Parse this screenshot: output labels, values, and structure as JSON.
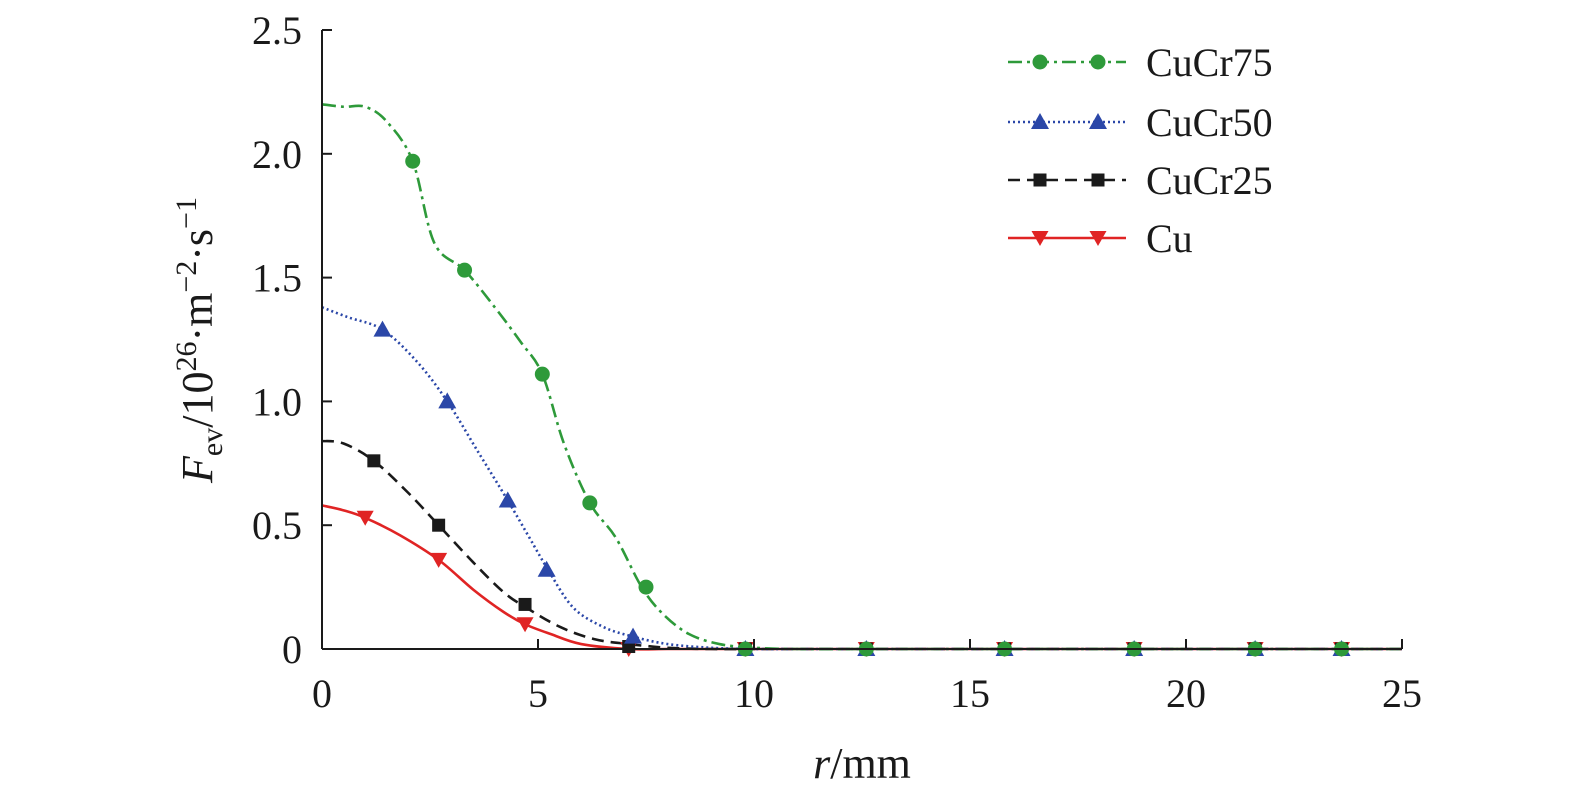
{
  "chart_data": {
    "type": "line",
    "xlabel": {
      "italic": "r",
      "rest": "/mm"
    },
    "ylabel": {
      "main": "F",
      "sub": "ev",
      "unit_a": "/10",
      "sup_a": "26",
      "unit_b": "·m",
      "sup_b": "−2",
      "unit_c": "·s",
      "sup_c": "−1"
    },
    "xlim": [
      0,
      25
    ],
    "ylim": [
      0,
      2.5
    ],
    "xticks": [
      0,
      5,
      10,
      15,
      20,
      25
    ],
    "xtick_labels": [
      "0",
      "5",
      "10",
      "15",
      "20",
      "25"
    ],
    "yticks": [
      0,
      0.5,
      1.0,
      1.5,
      2.0,
      2.5
    ],
    "ytick_labels": [
      "0",
      "0.5",
      "1.0",
      "1.5",
      "2.0",
      "2.5"
    ],
    "grid": false,
    "legend_position": "top-right",
    "series": [
      {
        "name": "CuCr75",
        "color": "#2e9a3a",
        "dash": "14,5,3,5",
        "marker": "circle",
        "curve_x": [
          0,
          0.5,
          1.0,
          1.5,
          2.1,
          2.6,
          3.3,
          4.0,
          4.6,
          5.1,
          5.6,
          6.2,
          6.8,
          7.4,
          7.9,
          8.5,
          9.2,
          10.0,
          11.0,
          12.6,
          15.8,
          18.8,
          21.6,
          23.6,
          25
        ],
        "curve_y": [
          2.2,
          2.19,
          2.19,
          2.13,
          1.97,
          1.64,
          1.53,
          1.38,
          1.24,
          1.11,
          0.83,
          0.59,
          0.45,
          0.25,
          0.14,
          0.06,
          0.02,
          0.005,
          0.0,
          0.0,
          0.0,
          0.0,
          0.0,
          0.0,
          0.0
        ],
        "marker_x": [
          2.1,
          3.3,
          5.1,
          6.2,
          7.5,
          9.8,
          12.6,
          15.8,
          18.8,
          21.6,
          23.6
        ],
        "marker_y": [
          1.97,
          1.53,
          1.11,
          0.59,
          0.25,
          0.0,
          0.0,
          0.0,
          0.0,
          0.0,
          0.0
        ]
      },
      {
        "name": "CuCr50",
        "color": "#2b47a8",
        "dash": "2,3",
        "marker": "triangle-up",
        "curve_x": [
          0,
          0.6,
          1.4,
          2.2,
          2.9,
          3.6,
          4.3,
          4.8,
          5.2,
          5.8,
          6.5,
          7.2,
          8.0,
          9.0,
          10.0,
          11.0,
          12.6,
          15.8,
          18.8,
          21.6,
          23.6,
          25
        ],
        "curve_y": [
          1.38,
          1.34,
          1.29,
          1.16,
          1.0,
          0.8,
          0.6,
          0.45,
          0.33,
          0.17,
          0.09,
          0.05,
          0.02,
          0.005,
          0.0,
          0.0,
          0.0,
          0.0,
          0.0,
          0.0,
          0.0,
          0.0
        ],
        "marker_x": [
          1.4,
          2.9,
          4.3,
          5.2,
          7.2,
          9.8,
          12.6,
          15.8,
          18.8,
          21.6,
          23.6
        ],
        "marker_y": [
          1.29,
          1.0,
          0.6,
          0.32,
          0.05,
          0.0,
          0.0,
          0.0,
          0.0,
          0.0,
          0.0
        ]
      },
      {
        "name": "CuCr25",
        "color": "#1a1a1a",
        "dash": "12,7",
        "marker": "square",
        "curve_x": [
          0,
          0.5,
          1.2,
          2.0,
          2.7,
          3.5,
          4.2,
          4.7,
          5.5,
          6.3,
          7.1,
          8.0,
          9.0,
          10.0,
          11.0,
          12.6,
          15.8,
          18.8,
          21.6,
          23.6,
          25
        ],
        "curve_y": [
          0.84,
          0.83,
          0.76,
          0.63,
          0.5,
          0.35,
          0.23,
          0.17,
          0.09,
          0.04,
          0.02,
          0.005,
          0.0,
          0.0,
          0.0,
          0.0,
          0.0,
          0.0,
          0.0,
          0.0,
          0.0
        ],
        "marker_x": [
          1.2,
          2.7,
          4.7,
          7.1,
          9.8,
          12.6,
          15.8,
          18.8,
          21.6,
          23.6
        ],
        "marker_y": [
          0.76,
          0.5,
          0.18,
          0.01,
          0.0,
          0.0,
          0.0,
          0.0,
          0.0,
          0.0
        ]
      },
      {
        "name": "Cu",
        "color": "#e02424",
        "dash": "",
        "marker": "triangle-down",
        "curve_x": [
          0,
          0.5,
          1.0,
          1.8,
          2.7,
          3.5,
          4.2,
          4.7,
          5.3,
          6.0,
          7.1,
          8.0,
          9.0,
          10.0,
          11.0,
          12.6,
          15.8,
          18.8,
          21.6,
          23.6,
          25
        ],
        "curve_y": [
          0.58,
          0.56,
          0.53,
          0.46,
          0.36,
          0.24,
          0.15,
          0.1,
          0.06,
          0.02,
          0.0,
          0.0,
          0.0,
          0.0,
          0.0,
          0.0,
          0.0,
          0.0,
          0.0,
          0.0,
          0.0
        ],
        "marker_x": [
          1.0,
          2.7,
          4.7,
          7.1,
          9.8,
          12.6,
          15.8,
          18.8,
          21.6,
          23.6
        ],
        "marker_y": [
          0.53,
          0.36,
          0.1,
          0.0,
          0.0,
          0.0,
          0.0,
          0.0,
          0.0,
          0.0
        ]
      }
    ]
  }
}
